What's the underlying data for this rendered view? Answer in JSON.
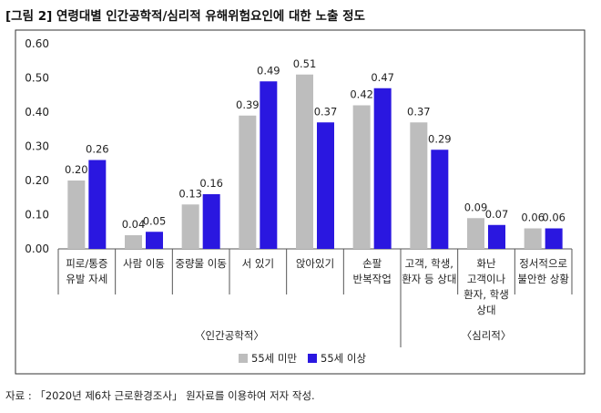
{
  "title": "[그림 2] 연령대별 인간공학적/심리적 유해위험요인에 대한 노출 정도",
  "source": "자료 : 「2020년 제6차 근로환경조사」 원자료를 이용하여 저자 작성.",
  "colors": {
    "series1": "#bdbdbd",
    "series2": "#2a17e0",
    "frame": "#333333"
  },
  "chart_data": {
    "type": "bar",
    "title": "연령대별 인간공학적/심리적 유해위험요인에 대한 노출 정도",
    "ylim": [
      0,
      0.6
    ],
    "yticks": [
      "0.00",
      "0.10",
      "0.20",
      "0.30",
      "0.40",
      "0.50",
      "0.60"
    ],
    "categories": [
      [
        "피로/통증",
        "유발 자세"
      ],
      [
        "사람 이동"
      ],
      [
        "중량물 이동"
      ],
      [
        "서 있기"
      ],
      [
        "앉아있기"
      ],
      [
        "손팔",
        "반복작업"
      ],
      [
        "고객, 학생,",
        "환자 등 상대"
      ],
      [
        "화난",
        "고객이나",
        "환자, 학생",
        "상대"
      ],
      [
        "정서적으로",
        "불안한 상황"
      ]
    ],
    "series": [
      {
        "name": "55세 미만",
        "values": [
          0.2,
          0.04,
          0.13,
          0.39,
          0.51,
          0.42,
          0.37,
          0.09,
          0.06
        ],
        "labels": [
          "0.20",
          "0.04",
          "0.13",
          "0.39",
          "0.51",
          "0.42",
          "0.37",
          "0.09",
          "0.06"
        ]
      },
      {
        "name": "55세 이상",
        "values": [
          0.26,
          0.05,
          0.16,
          0.49,
          0.37,
          0.47,
          0.29,
          0.07,
          0.06
        ],
        "labels": [
          "0.26",
          "0.05",
          "0.16",
          "0.49",
          "0.37",
          "0.47",
          "0.29",
          "0.07",
          "0.06"
        ]
      }
    ],
    "groups": [
      {
        "label": "〈인간공학적〉",
        "span": [
          0,
          5
        ]
      },
      {
        "label": "〈심리적〉",
        "span": [
          6,
          8
        ]
      }
    ],
    "legend_position": "bottom"
  }
}
